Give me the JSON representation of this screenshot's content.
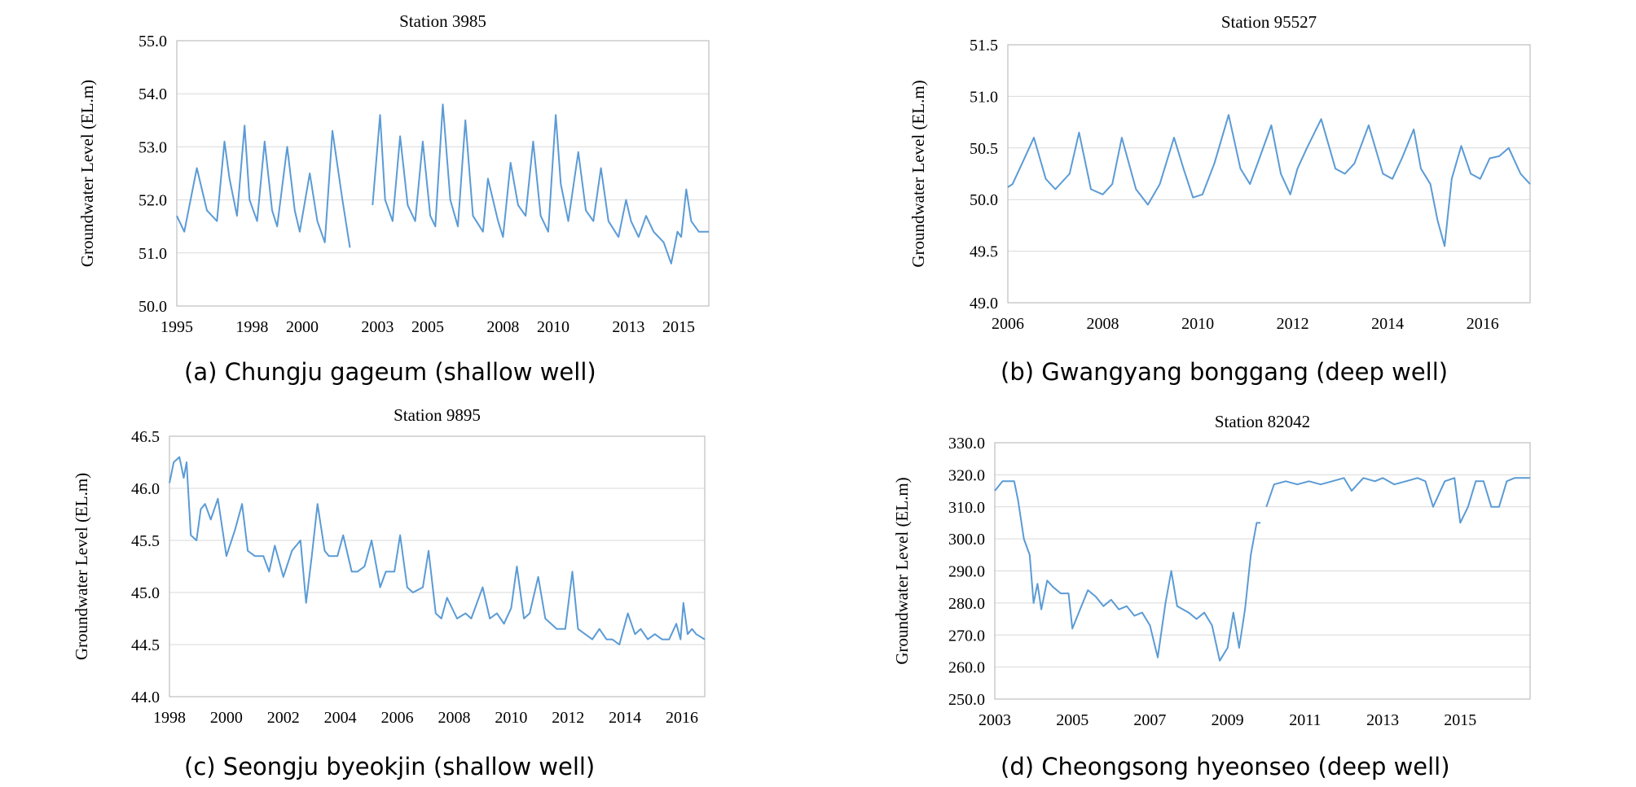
{
  "chart_data": [
    {
      "type": "line",
      "title": "Station 3985",
      "ylabel": "Groundwater Level (EL.m)",
      "caption": "(a) Chungju gageum (shallow well)",
      "xlim": [
        1995,
        2016.2
      ],
      "ylim": [
        50.0,
        55.0
      ],
      "yticks": [
        50.0,
        51.0,
        52.0,
        53.0,
        54.0,
        55.0
      ],
      "ytick_labels": [
        "50.0",
        "51.0",
        "52.0",
        "53.0",
        "54.0",
        "55.0"
      ],
      "xticks": [
        1995,
        1998,
        2000,
        2003,
        2005,
        2008,
        2010,
        2013,
        2015
      ],
      "xtick_labels": [
        "1995",
        "1998",
        "2000",
        "2003",
        "2005",
        "2008",
        "2010",
        "2013",
        "2015"
      ],
      "grid": true,
      "line_color": "#5b9bd5",
      "series": [
        {
          "x": [
            1995.0,
            1995.3,
            1995.8,
            1996.2,
            1996.6,
            1996.9,
            1997.1,
            1997.4,
            1997.7,
            1997.9,
            1998.2,
            1998.5,
            1998.8,
            1999.0,
            1999.4,
            1999.7,
            1999.9,
            2000.3,
            2000.6,
            2000.9,
            2001.2,
            2001.6,
            2001.9,
            2002.2,
            2002.5,
            2002.7
          ],
          "y": [
            51.7,
            51.4,
            52.6,
            51.8,
            51.6,
            53.1,
            52.4,
            51.7,
            53.4,
            52.0,
            51.6,
            53.1,
            51.8,
            51.5,
            53.0,
            51.8,
            51.4,
            52.5,
            51.6,
            51.2,
            53.3,
            52.0,
            51.1,
            null,
            null,
            null
          ]
        },
        {
          "x": [
            2002.8,
            2003.1,
            2003.3,
            2003.6,
            2003.9,
            2004.2,
            2004.5,
            2004.8,
            2005.1,
            2005.3,
            2005.6,
            2005.9,
            2006.2,
            2006.5,
            2006.8,
            2007.2,
            2007.4,
            2007.8,
            2008.0,
            2008.3,
            2008.6,
            2008.9,
            2009.2,
            2009.5,
            2009.8,
            2010.1,
            2010.3,
            2010.6,
            2011.0,
            2011.3,
            2011.6,
            2011.9,
            2012.2,
            2012.6,
            2012.9,
            2013.1,
            2013.4,
            2013.7,
            2014.0,
            2014.4,
            2014.7,
            2014.95,
            2015.1,
            2015.3,
            2015.5,
            2015.8,
            2016.2
          ],
          "y": [
            51.9,
            53.6,
            52.0,
            51.6,
            53.2,
            51.9,
            51.6,
            53.1,
            51.7,
            51.5,
            53.8,
            52.0,
            51.5,
            53.5,
            51.7,
            51.4,
            52.4,
            51.6,
            51.3,
            52.7,
            51.9,
            51.7,
            53.1,
            51.7,
            51.4,
            53.6,
            52.3,
            51.6,
            52.9,
            51.8,
            51.6,
            52.6,
            51.6,
            51.3,
            52.0,
            51.6,
            51.3,
            51.7,
            51.4,
            51.2,
            50.8,
            51.4,
            51.3,
            52.2,
            51.6,
            51.4,
            51.4
          ]
        }
      ]
    },
    {
      "type": "line",
      "title": "Station 95527",
      "ylabel": "Groundwater Level (EL.m)",
      "caption": "(b) Gwangyang bonggang (deep well)",
      "xlim": [
        2006,
        2017
      ],
      "ylim": [
        49.0,
        51.5
      ],
      "yticks": [
        49.0,
        49.5,
        50.0,
        50.5,
        51.0,
        51.5
      ],
      "ytick_labels": [
        "49.0",
        "49.5",
        "50.0",
        "50.5",
        "51.0",
        "51.5"
      ],
      "xticks": [
        2006,
        2008,
        2010,
        2012,
        2014,
        2016
      ],
      "xtick_labels": [
        "2006",
        "2008",
        "2010",
        "2012",
        "2014",
        "2016"
      ],
      "grid": true,
      "line_color": "#5b9bd5",
      "series": [
        {
          "x": [
            2006.0,
            2006.1,
            2006.3,
            2006.55,
            2006.8,
            2007.0,
            2007.3,
            2007.5,
            2007.75,
            2008.0,
            2008.2,
            2008.4,
            2008.7,
            2008.95,
            2009.2,
            2009.5,
            2009.7,
            2009.9,
            2010.1,
            2010.35,
            2010.65,
            2010.9,
            2011.1,
            2011.3,
            2011.55,
            2011.75,
            2011.95,
            2012.1,
            2012.3,
            2012.6,
            2012.9,
            2013.1,
            2013.3,
            2013.6,
            2013.9,
            2014.1,
            2014.3,
            2014.55,
            2014.7,
            2014.9,
            2015.05,
            2015.2,
            2015.35,
            2015.55,
            2015.75,
            2015.95,
            2016.15,
            2016.35,
            2016.55,
            2016.8,
            2017.0
          ],
          "y": [
            50.12,
            50.15,
            50.35,
            50.6,
            50.2,
            50.1,
            50.25,
            50.65,
            50.1,
            50.05,
            50.15,
            50.6,
            50.1,
            49.95,
            50.15,
            50.6,
            50.3,
            50.02,
            50.05,
            50.35,
            50.82,
            50.3,
            50.15,
            50.4,
            50.72,
            50.25,
            50.05,
            50.3,
            50.5,
            50.78,
            50.3,
            50.25,
            50.35,
            50.72,
            50.25,
            50.2,
            50.4,
            50.68,
            50.3,
            50.15,
            49.8,
            49.55,
            50.2,
            50.52,
            50.25,
            50.2,
            50.4,
            50.42,
            50.5,
            50.25,
            50.15
          ]
        }
      ]
    },
    {
      "type": "line",
      "title": "Station 9895",
      "ylabel": "Groundwater Level (EL.m)",
      "caption": "(c) Seongju byeokjin (shallow well)",
      "xlim": [
        1998,
        2016.8
      ],
      "ylim": [
        44.0,
        46.5
      ],
      "yticks": [
        44.0,
        44.5,
        45.0,
        45.5,
        46.0,
        46.5
      ],
      "ytick_labels": [
        "44.0",
        "44.5",
        "45.0",
        "45.5",
        "46.0",
        "46.5"
      ],
      "xticks": [
        1998,
        2000,
        2002,
        2004,
        2006,
        2008,
        2010,
        2012,
        2014,
        2016
      ],
      "xtick_labels": [
        "1998",
        "2000",
        "2002",
        "2004",
        "2006",
        "2008",
        "2010",
        "2012",
        "2014",
        "2016"
      ],
      "grid": true,
      "line_color": "#5b9bd5",
      "series": [
        {
          "x": [
            1998.0,
            1998.15,
            1998.35,
            1998.5,
            1998.6,
            1998.75,
            1998.95,
            1999.1,
            1999.25,
            1999.45,
            1999.7,
            2000.0,
            2000.3,
            2000.55,
            2000.75,
            2001.0,
            2001.3,
            2001.5,
            2001.7,
            2002.0,
            2002.3,
            2002.6,
            2002.8,
            2003.0,
            2003.2,
            2003.45,
            2003.6,
            2003.9,
            2004.1,
            2004.4,
            2004.6,
            2004.85,
            2005.1,
            2005.4,
            2005.6,
            2005.9,
            2006.1,
            2006.35,
            2006.55,
            2006.9,
            2007.1,
            2007.35,
            2007.55,
            2007.75,
            2008.1,
            2008.4,
            2008.6,
            2009.0,
            2009.25,
            2009.5,
            2009.75,
            2010.0,
            2010.2,
            2010.45,
            2010.65,
            2010.95,
            2011.2,
            2011.4,
            2011.6,
            2011.9,
            2012.15,
            2012.35,
            2012.6,
            2012.85,
            2013.1,
            2013.35,
            2013.55,
            2013.8,
            2014.1,
            2014.35,
            2014.55,
            2014.8,
            2015.05,
            2015.3,
            2015.55,
            2015.8,
            2015.95,
            2016.05,
            2016.2,
            2016.35,
            2016.5,
            2016.8
          ],
          "y": [
            46.05,
            46.25,
            46.3,
            46.1,
            46.25,
            45.55,
            45.5,
            45.8,
            45.85,
            45.7,
            45.9,
            45.35,
            45.6,
            45.85,
            45.4,
            45.35,
            45.35,
            45.2,
            45.45,
            45.15,
            45.4,
            45.5,
            44.9,
            45.35,
            45.85,
            45.4,
            45.35,
            45.35,
            45.55,
            45.2,
            45.2,
            45.25,
            45.5,
            45.05,
            45.2,
            45.2,
            45.55,
            45.05,
            45.0,
            45.05,
            45.4,
            44.8,
            44.75,
            44.95,
            44.75,
            44.8,
            44.75,
            45.05,
            44.75,
            44.8,
            44.7,
            44.85,
            45.25,
            44.75,
            44.8,
            45.15,
            44.75,
            44.7,
            44.65,
            44.65,
            45.2,
            44.65,
            44.6,
            44.55,
            44.65,
            44.55,
            44.55,
            44.5,
            44.8,
            44.6,
            44.65,
            44.55,
            44.6,
            44.55,
            44.55,
            44.7,
            44.55,
            44.9,
            44.6,
            44.65,
            44.6,
            44.55
          ]
        }
      ]
    },
    {
      "type": "line",
      "title": "Station 82042",
      "ylabel": "Groundwater Level (EL.m)",
      "caption": "(d) Cheongsong hyeonseo (deep well)",
      "xlim": [
        2003,
        2016.8
      ],
      "ylim": [
        250.0,
        330.0
      ],
      "yticks": [
        250.0,
        260.0,
        270.0,
        280.0,
        290.0,
        300.0,
        310.0,
        320.0,
        330.0
      ],
      "ytick_labels": [
        "250.0",
        "260.0",
        "270.0",
        "280.0",
        "290.0",
        "300.0",
        "310.0",
        "320.0",
        "330.0"
      ],
      "xticks": [
        2003,
        2005,
        2007,
        2009,
        2011,
        2013,
        2015
      ],
      "xtick_labels": [
        "2003",
        "2005",
        "2007",
        "2009",
        "2011",
        "2013",
        "2015"
      ],
      "grid": true,
      "line_color": "#5b9bd5",
      "series": [
        {
          "x": [
            2003.0,
            2003.2,
            2003.5,
            2003.6,
            2003.75,
            2003.9,
            2004.0,
            2004.1,
            2004.2,
            2004.35,
            2004.5,
            2004.7,
            2004.9,
            2005.0,
            2005.2,
            2005.4,
            2005.6,
            2005.8,
            2006.0,
            2006.2,
            2006.4,
            2006.6,
            2006.8,
            2007.0,
            2007.2,
            2007.4,
            2007.55,
            2007.7,
            2007.85,
            2008.0,
            2008.2,
            2008.4,
            2008.6,
            2008.8,
            2009.0,
            2009.15,
            2009.3,
            2009.45,
            2009.6,
            2009.75,
            2009.85
          ],
          "y": [
            315,
            318,
            318,
            312,
            300,
            295,
            280,
            286,
            278,
            287,
            285,
            283,
            283,
            272,
            278,
            284,
            282,
            279,
            281,
            278,
            279,
            276,
            277,
            273,
            263,
            280,
            290,
            279,
            278,
            277,
            275,
            277,
            273,
            262,
            266,
            277,
            266,
            278,
            295,
            305,
            305
          ]
        },
        {
          "x": [
            2010.0,
            2010.2,
            2010.5,
            2010.8,
            2011.1,
            2011.4,
            2011.7,
            2012.0,
            2012.2,
            2012.5,
            2012.8,
            2013.0,
            2013.3,
            2013.6,
            2013.9,
            2014.1,
            2014.3,
            2014.6,
            2014.85,
            2015.0,
            2015.2,
            2015.4,
            2015.6,
            2015.8,
            2016.0,
            2016.2,
            2016.4,
            2016.6,
            2016.8
          ],
          "y": [
            310,
            317,
            318,
            317,
            318,
            317,
            318,
            319,
            315,
            319,
            318,
            319,
            317,
            318,
            319,
            318,
            310,
            318,
            319,
            305,
            310,
            318,
            318,
            310,
            310,
            318,
            319,
            319,
            319
          ]
        }
      ]
    }
  ]
}
